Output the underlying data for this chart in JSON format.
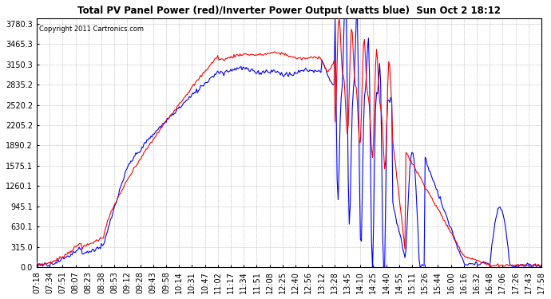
{
  "title": "Total PV Panel Power (red)/Inverter Power Output (watts blue)  Sun Oct 2 18:12",
  "copyright": "Copyright 2011 Cartronics.com",
  "bg_color": "#ffffff",
  "plot_bg_color": "#ffffff",
  "grid_color": "#aaaaaa",
  "red_color": "#ff0000",
  "blue_color": "#0000ff",
  "yticks": [
    0.0,
    315.0,
    630.1,
    945.1,
    1260.1,
    1575.1,
    1890.2,
    2205.2,
    2520.2,
    2835.2,
    3150.3,
    3465.3,
    3780.3
  ],
  "xtick_labels": [
    "07:18",
    "07:34",
    "07:51",
    "08:07",
    "08:23",
    "08:38",
    "08:53",
    "09:12",
    "09:28",
    "09:43",
    "09:58",
    "10:14",
    "10:31",
    "10:47",
    "11:02",
    "11:17",
    "11:34",
    "11:51",
    "12:08",
    "12:25",
    "12:40",
    "12:56",
    "13:12",
    "13:28",
    "13:45",
    "14:10",
    "14:25",
    "14:40",
    "14:55",
    "15:11",
    "15:26",
    "15:44",
    "16:00",
    "16:16",
    "16:32",
    "16:48",
    "17:06",
    "17:26",
    "17:43",
    "17:58"
  ],
  "ymax": 3870,
  "ymin": 0
}
